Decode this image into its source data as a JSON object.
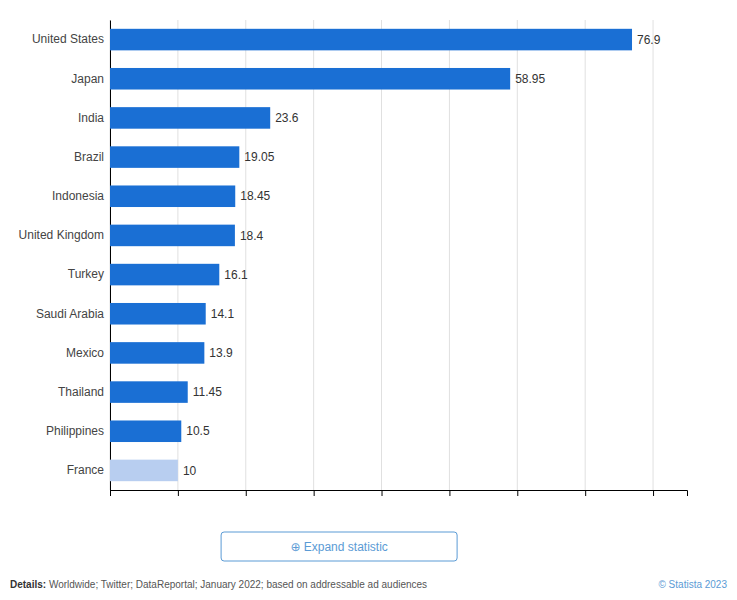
{
  "chart_data": {
    "type": "bar",
    "orientation": "horizontal",
    "categories": [
      "France",
      "Philippines",
      "Thailand",
      "Mexico",
      "Saudi Arabia",
      "Turkey",
      "United Kingdom",
      "Indonesia",
      "Brazil",
      "India",
      "Japan",
      "United States"
    ],
    "values": [
      10,
      10.5,
      11.45,
      13.9,
      14.1,
      16.1,
      18.4,
      18.45,
      19.05,
      23.6,
      58.95,
      76.9
    ],
    "colors": [
      "#b8cef0",
      "#1a6fd4",
      "#1a6fd4",
      "#1a6fd4",
      "#1a6fd4",
      "#1a6fd4",
      "#1a6fd4",
      "#1a6fd4",
      "#1a6fd4",
      "#1a6fd4",
      "#1a6fd4",
      "#1a6fd4"
    ],
    "xlim": [
      0,
      85
    ],
    "xticks": [
      0,
      10,
      20,
      30,
      40,
      50,
      60,
      70,
      80
    ],
    "grid": true,
    "data_labels": true,
    "tick_labels": "y",
    "annotations": [
      "Details:",
      " Worldwide; Twitter; DataReportal; January 2022; based on addressable ad audiences",
      "© Statista 2023",
      "⊕ Expand statistic"
    ]
  }
}
